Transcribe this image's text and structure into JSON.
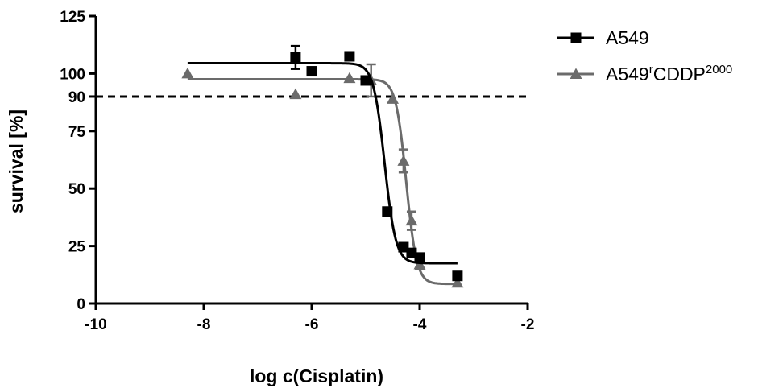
{
  "chart_data": {
    "type": "scatter",
    "title": "",
    "xlabel": "log c(Cisplatin)",
    "ylabel": "survival [%]",
    "xlim": [
      -10,
      -2
    ],
    "ylim": [
      0,
      125
    ],
    "xticks": [
      -10,
      -8,
      -6,
      -4,
      -2
    ],
    "xtick_labels": [
      "-10",
      "-8",
      "-6",
      "-4",
      "-2"
    ],
    "yticks": [
      0,
      25,
      50,
      75,
      90,
      100,
      125
    ],
    "ytick_labels": [
      "0",
      "25",
      "50",
      "75",
      "90",
      "100",
      "125"
    ],
    "reference_line": {
      "y": 90,
      "style": "dashed"
    },
    "grid": false,
    "legend": {
      "position": "top-right"
    },
    "series": [
      {
        "name": "A549",
        "legend_base": "A549",
        "legend_sup": "",
        "legend_mid": "",
        "legend_sup2": "",
        "marker": "square",
        "color": "#000000",
        "fit": {
          "top": 104.5,
          "bottom": 17.5,
          "logIC50": -4.65,
          "hill": -4.2,
          "x_range": [
            -8.3,
            -3.3
          ]
        },
        "points": [
          {
            "x": -6.3,
            "y": 107,
            "err": 5
          },
          {
            "x": -6.0,
            "y": 101,
            "err": 1.5
          },
          {
            "x": -5.3,
            "y": 107.5,
            "err": 0
          },
          {
            "x": -5.0,
            "y": 97,
            "err": 0
          },
          {
            "x": -4.6,
            "y": 40,
            "err": 0
          },
          {
            "x": -4.3,
            "y": 24.5,
            "err": 0
          },
          {
            "x": -4.15,
            "y": 22,
            "err": 0
          },
          {
            "x": -4.0,
            "y": 20,
            "err": 0
          },
          {
            "x": -3.3,
            "y": 12,
            "err": 0
          }
        ]
      },
      {
        "name": "A549rCDDP2000",
        "legend_base": "A549",
        "legend_sup": "r",
        "legend_mid": "CDDP",
        "legend_sup2": "2000",
        "marker": "triangle",
        "color": "#6b6b6b",
        "fit": {
          "top": 97.5,
          "bottom": 8.5,
          "logIC50": -4.25,
          "hill": -4.5,
          "x_range": [
            -8.3,
            -3.3
          ]
        },
        "points": [
          {
            "x": -8.3,
            "y": 100,
            "err": 0
          },
          {
            "x": -6.3,
            "y": 91,
            "err": 0
          },
          {
            "x": -5.3,
            "y": 98,
            "err": 0
          },
          {
            "x": -4.9,
            "y": 97,
            "err": 7
          },
          {
            "x": -4.5,
            "y": 89,
            "err": 0
          },
          {
            "x": -4.3,
            "y": 62,
            "err": 5
          },
          {
            "x": -4.15,
            "y": 36,
            "err": 4
          },
          {
            "x": -4.0,
            "y": 17,
            "err": 2
          },
          {
            "x": -3.3,
            "y": 9,
            "err": 0
          }
        ]
      }
    ]
  }
}
